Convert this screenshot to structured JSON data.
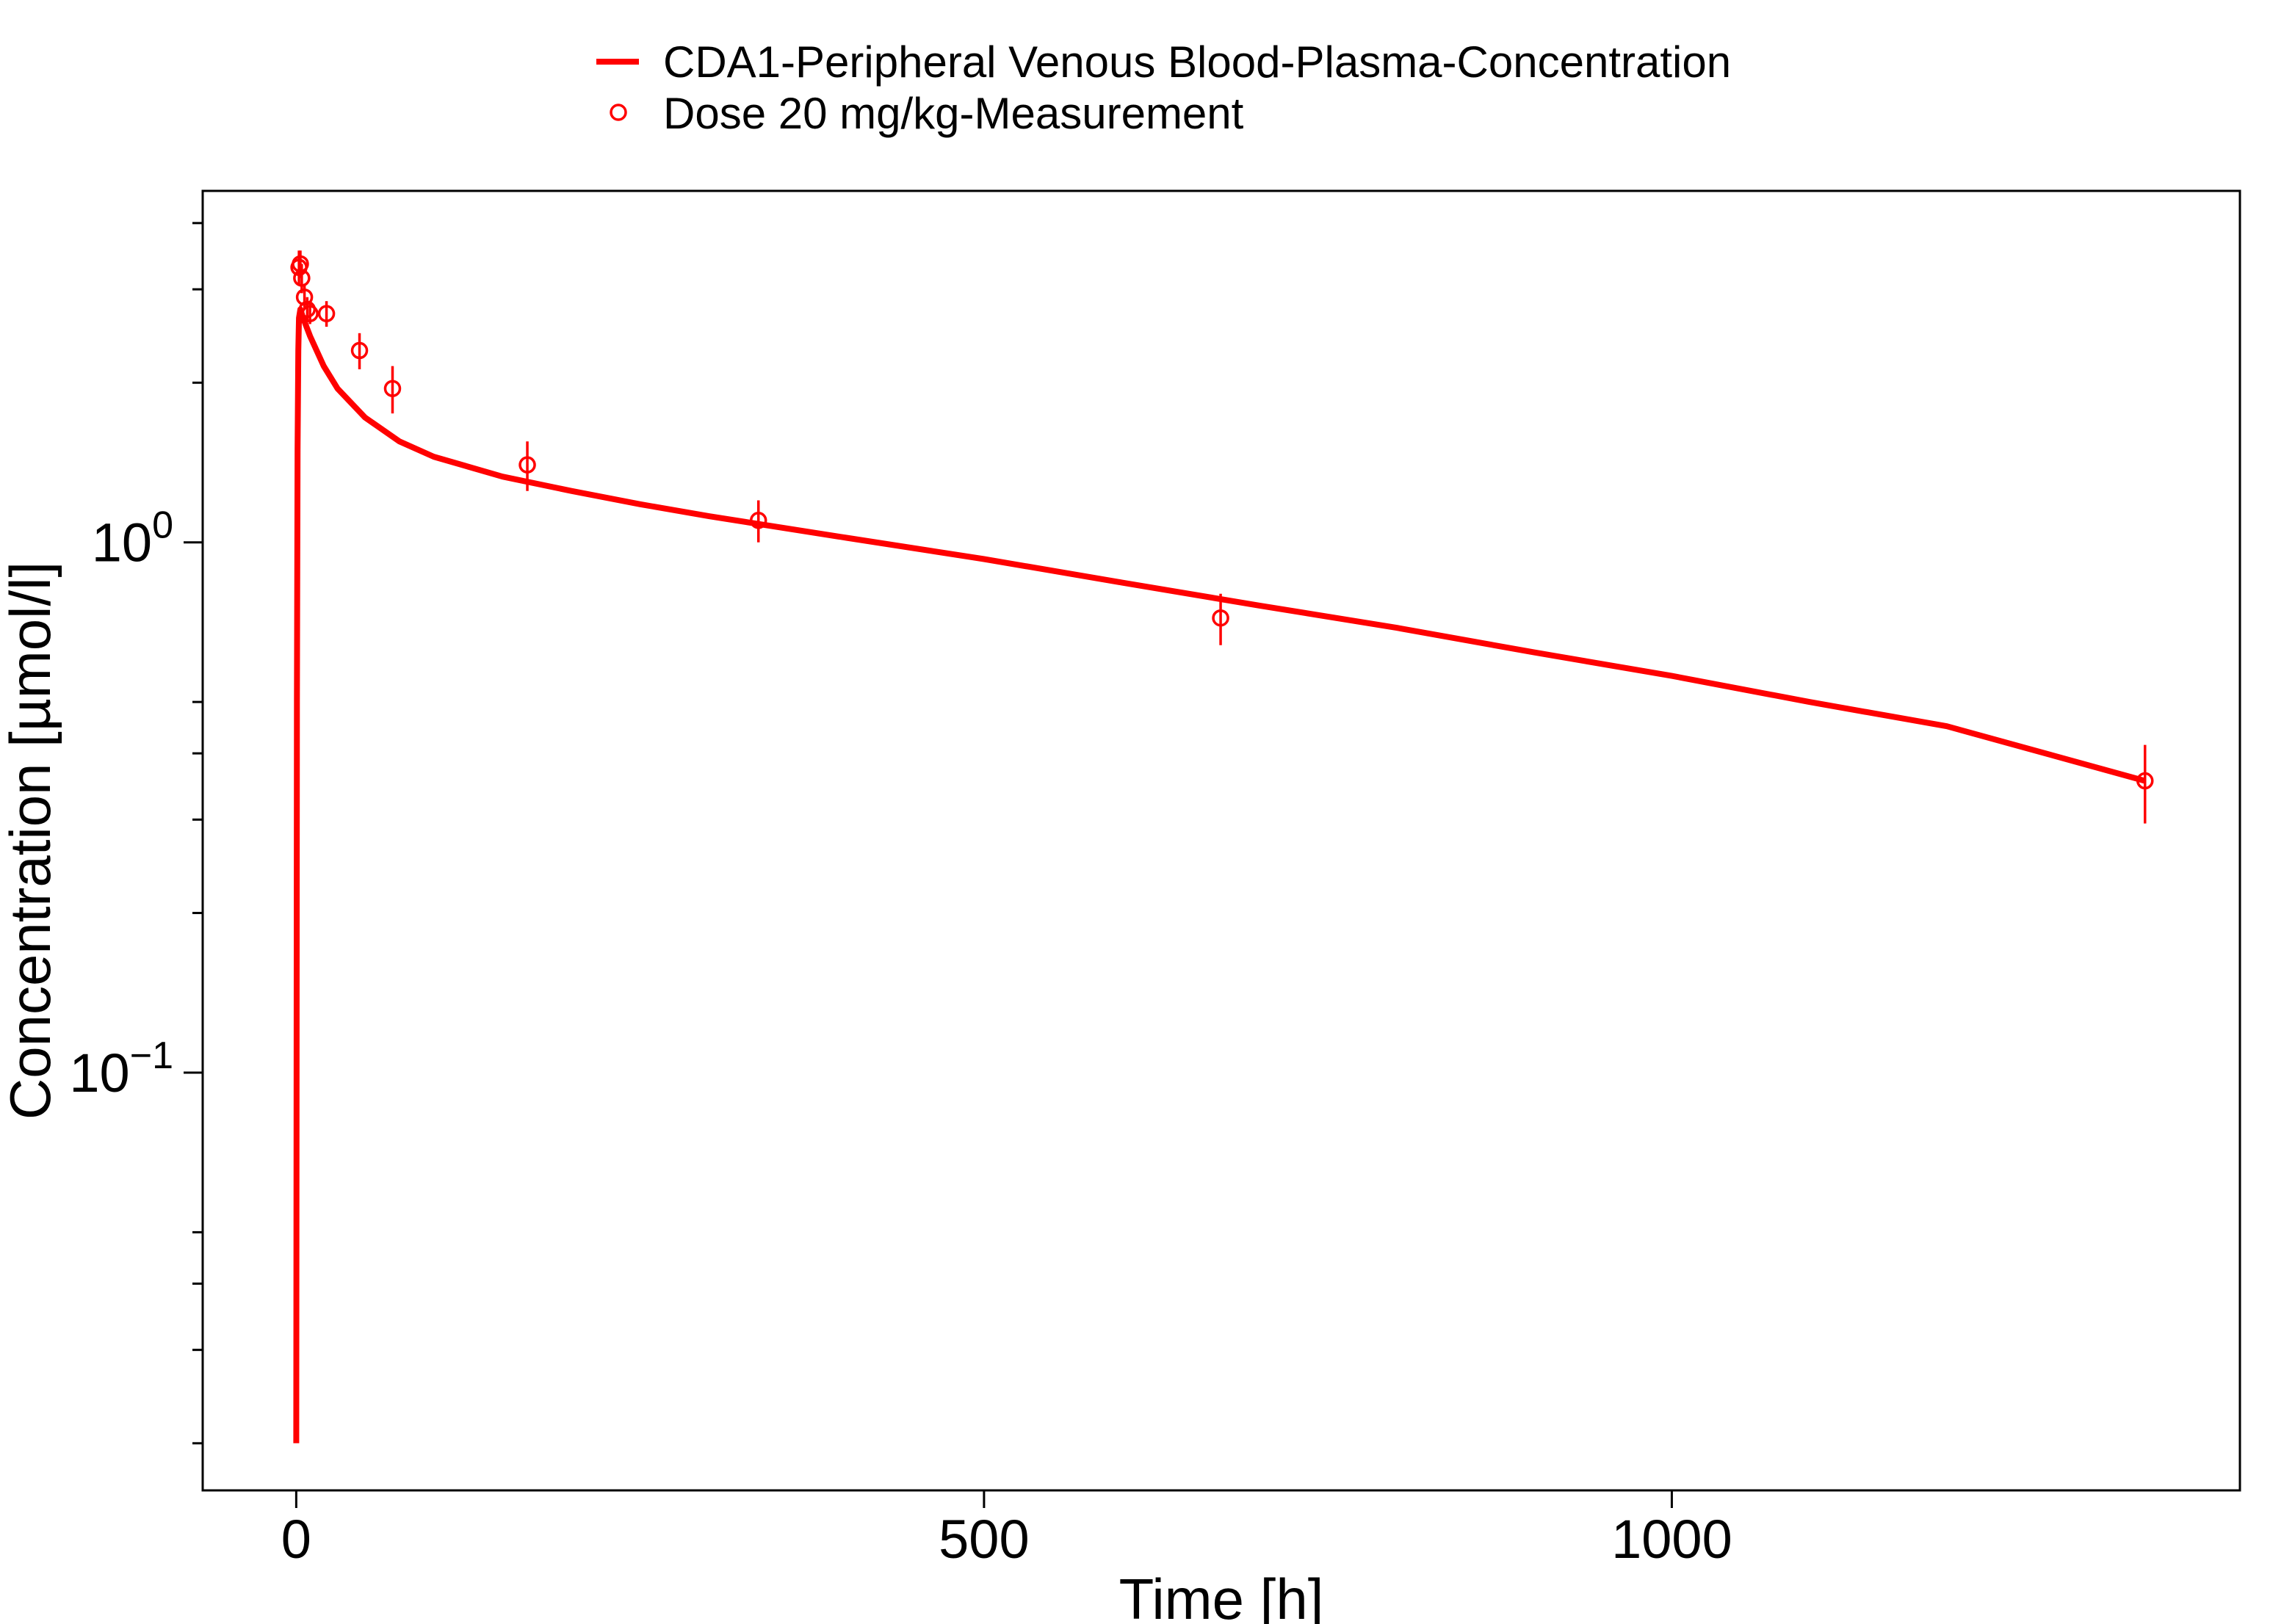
{
  "chart_data": {
    "type": "line",
    "title": "",
    "xlabel": "Time [h]",
    "ylabel": "Concentration [µmol/l]",
    "x_scale": "linear",
    "y_scale": "log",
    "xlim": [
      -68,
      1413
    ],
    "ylim": [
      0.0163,
      4.6
    ],
    "x_ticks": [
      0,
      500,
      1000
    ],
    "x_tick_labels": [
      "0",
      "500",
      "1000"
    ],
    "y_major_ticks": [
      {
        "value": 1,
        "base": "10",
        "exponent": "0"
      },
      {
        "value": 0.1,
        "base": "10",
        "exponent": "−1"
      }
    ],
    "y_minor_ticks": [
      4,
      3,
      2,
      0.5,
      0.4,
      0.3,
      0.2,
      0.05,
      0.04,
      0.03,
      0.02
    ],
    "grid": false,
    "legend_position": "top-center",
    "colors": {
      "series": "#ff0000",
      "text": "#000000",
      "frame": "#000000"
    },
    "series": [
      {
        "name": "CDA1-Peripheral Venous Blood-Plasma-Concentration",
        "kind": "line",
        "x": [
          0,
          0.5,
          1,
          1.5,
          2,
          3,
          5,
          10,
          20,
          30,
          50,
          75,
          100,
          150,
          200,
          250,
          300,
          400,
          500,
          600,
          700,
          800,
          900,
          1000,
          1100,
          1200,
          1344
        ],
        "y": [
          0.02,
          0.5,
          1.5,
          2.3,
          2.65,
          2.75,
          2.65,
          2.45,
          2.15,
          1.95,
          1.72,
          1.55,
          1.45,
          1.33,
          1.25,
          1.18,
          1.12,
          1.02,
          0.93,
          0.84,
          0.76,
          0.69,
          0.62,
          0.56,
          0.5,
          0.45,
          0.355
        ]
      },
      {
        "name": "Dose 20 mg/kg-Measurement",
        "kind": "points",
        "x": [
          2,
          3,
          4,
          6,
          8,
          10,
          22,
          46,
          70,
          168,
          336,
          672,
          1344
        ],
        "y": [
          3.3,
          3.35,
          3.15,
          2.9,
          2.75,
          2.7,
          2.7,
          2.3,
          1.95,
          1.4,
          1.1,
          0.72,
          0.355
        ],
        "error": [
          0.25,
          0.2,
          0.2,
          0.15,
          0.15,
          0.12,
          0.15,
          0.18,
          0.2,
          0.15,
          0.1,
          0.08,
          0.06
        ]
      }
    ]
  }
}
